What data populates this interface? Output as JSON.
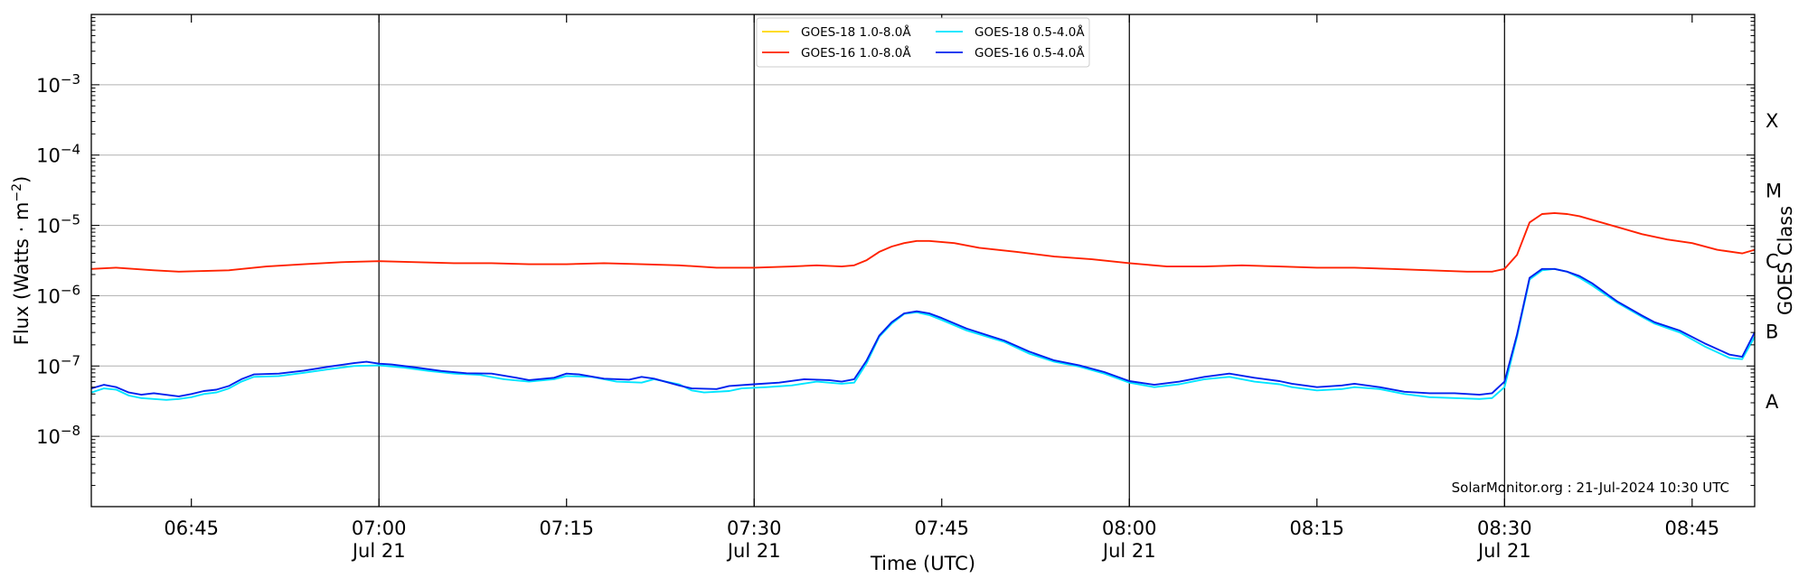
{
  "chart_data": {
    "type": "line",
    "title": "",
    "xlabel": "Time (UTC)",
    "ylabel": "Flux (Watts · m",
    "ylabel_exponent": "−2",
    "ylabel_close": ")",
    "y2label": "GOES Class",
    "yscale": "log",
    "xlim": [
      "06:37",
      "08:50"
    ],
    "ylim": [
      1e-09,
      0.01
    ],
    "grid": "horizontal",
    "legend_position": "top-center",
    "x_ticks": [
      {
        "time": "06:45",
        "label": "06:45",
        "sublabel": ""
      },
      {
        "time": "07:00",
        "label": "07:00",
        "sublabel": "Jul 21"
      },
      {
        "time": "07:15",
        "label": "07:15",
        "sublabel": ""
      },
      {
        "time": "07:30",
        "label": "07:30",
        "sublabel": "Jul 21"
      },
      {
        "time": "07:45",
        "label": "07:45",
        "sublabel": ""
      },
      {
        "time": "08:00",
        "label": "08:00",
        "sublabel": "Jul 21"
      },
      {
        "time": "08:15",
        "label": "08:15",
        "sublabel": ""
      },
      {
        "time": "08:30",
        "label": "08:30",
        "sublabel": "Jul 21"
      },
      {
        "time": "08:45",
        "label": "08:45",
        "sublabel": ""
      }
    ],
    "day_lines": [
      "07:00",
      "07:30",
      "08:00",
      "08:30"
    ],
    "y_ticks": [
      {
        "exp": -8,
        "label": "10",
        "sup": "−8"
      },
      {
        "exp": -7,
        "label": "10",
        "sup": "−7"
      },
      {
        "exp": -6,
        "label": "10",
        "sup": "−6"
      },
      {
        "exp": -5,
        "label": "10",
        "sup": "−5"
      },
      {
        "exp": -4,
        "label": "10",
        "sup": "−4"
      },
      {
        "exp": -3,
        "label": "10",
        "sup": "−3"
      }
    ],
    "gridlines_exp": [
      -8,
      -7,
      -6,
      -5,
      -4,
      -3
    ],
    "goes_classes": [
      {
        "label": "A",
        "exp": -7.5
      },
      {
        "label": "B",
        "exp": -6.5
      },
      {
        "label": "C",
        "exp": -5.5
      },
      {
        "label": "M",
        "exp": -4.5
      },
      {
        "label": "X",
        "exp": -3.5
      }
    ],
    "credit": "SolarMonitor.org : 21-Jul-2024 10:30 UTC",
    "series": [
      {
        "name": "GOES-18 1.0-8.0Å",
        "color": "#ffd700",
        "points": []
      },
      {
        "name": "GOES-16 1.0-8.0Å",
        "color": "#ff2200",
        "points": [
          [
            "06:37",
            2.4e-06
          ],
          [
            "06:39",
            2.5e-06
          ],
          [
            "06:42",
            2.3e-06
          ],
          [
            "06:44",
            2.2e-06
          ],
          [
            "06:48",
            2.3e-06
          ],
          [
            "06:51",
            2.6e-06
          ],
          [
            "06:54",
            2.8e-06
          ],
          [
            "06:57",
            3e-06
          ],
          [
            "07:00",
            3.1e-06
          ],
          [
            "07:03",
            3e-06
          ],
          [
            "07:06",
            2.9e-06
          ],
          [
            "07:09",
            2.9e-06
          ],
          [
            "07:12",
            2.8e-06
          ],
          [
            "07:15",
            2.8e-06
          ],
          [
            "07:18",
            2.9e-06
          ],
          [
            "07:21",
            2.8e-06
          ],
          [
            "07:24",
            2.7e-06
          ],
          [
            "07:27",
            2.5e-06
          ],
          [
            "07:30",
            2.5e-06
          ],
          [
            "07:33",
            2.6e-06
          ],
          [
            "07:35",
            2.7e-06
          ],
          [
            "07:37",
            2.6e-06
          ],
          [
            "07:38",
            2.7e-06
          ],
          [
            "07:39",
            3.2e-06
          ],
          [
            "07:40",
            4.2e-06
          ],
          [
            "07:41",
            5e-06
          ],
          [
            "07:42",
            5.6e-06
          ],
          [
            "07:43",
            6e-06
          ],
          [
            "07:44",
            6e-06
          ],
          [
            "07:46",
            5.6e-06
          ],
          [
            "07:48",
            4.8e-06
          ],
          [
            "07:51",
            4.2e-06
          ],
          [
            "07:54",
            3.6e-06
          ],
          [
            "07:57",
            3.3e-06
          ],
          [
            "08:00",
            2.9e-06
          ],
          [
            "08:03",
            2.6e-06
          ],
          [
            "08:06",
            2.6e-06
          ],
          [
            "08:09",
            2.7e-06
          ],
          [
            "08:12",
            2.6e-06
          ],
          [
            "08:15",
            2.5e-06
          ],
          [
            "08:18",
            2.5e-06
          ],
          [
            "08:21",
            2.4e-06
          ],
          [
            "08:24",
            2.3e-06
          ],
          [
            "08:27",
            2.2e-06
          ],
          [
            "08:29",
            2.2e-06
          ],
          [
            "08:30",
            2.4e-06
          ],
          [
            "08:31",
            3.8e-06
          ],
          [
            "08:32",
            1.1e-05
          ],
          [
            "08:33",
            1.45e-05
          ],
          [
            "08:34",
            1.5e-05
          ],
          [
            "08:35",
            1.45e-05
          ],
          [
            "08:36",
            1.35e-05
          ],
          [
            "08:37",
            1.2e-05
          ],
          [
            "08:39",
            9.5e-06
          ],
          [
            "08:41",
            7.5e-06
          ],
          [
            "08:43",
            6.3e-06
          ],
          [
            "08:45",
            5.6e-06
          ],
          [
            "08:47",
            4.5e-06
          ],
          [
            "08:49",
            4e-06
          ],
          [
            "08:50",
            4.5e-06
          ]
        ]
      },
      {
        "name": "GOES-18 0.5-4.0Å",
        "color": "#00e5ff",
        "points": [
          [
            "06:37",
            4.2e-08
          ],
          [
            "06:38",
            4.8e-08
          ],
          [
            "06:39",
            4.6e-08
          ],
          [
            "06:40",
            3.8e-08
          ],
          [
            "06:41",
            3.5e-08
          ],
          [
            "06:43",
            3.3e-08
          ],
          [
            "06:44",
            3.4e-08
          ],
          [
            "06:45",
            3.6e-08
          ],
          [
            "06:46",
            4e-08
          ],
          [
            "06:47",
            4.2e-08
          ],
          [
            "06:48",
            4.8e-08
          ],
          [
            "06:49",
            6e-08
          ],
          [
            "06:50",
            7e-08
          ],
          [
            "06:52",
            7.2e-08
          ],
          [
            "06:54",
            8e-08
          ],
          [
            "06:56",
            9e-08
          ],
          [
            "06:58",
            1e-07
          ],
          [
            "07:00",
            1.02e-07
          ],
          [
            "07:02",
            9.5e-08
          ],
          [
            "07:04",
            8.5e-08
          ],
          [
            "07:06",
            7.8e-08
          ],
          [
            "07:08",
            7.5e-08
          ],
          [
            "07:10",
            6.5e-08
          ],
          [
            "07:12",
            6e-08
          ],
          [
            "07:14",
            6.5e-08
          ],
          [
            "07:15",
            7.2e-08
          ],
          [
            "07:17",
            7e-08
          ],
          [
            "07:19",
            6e-08
          ],
          [
            "07:21",
            5.8e-08
          ],
          [
            "07:22",
            6.5e-08
          ],
          [
            "07:24",
            5.5e-08
          ],
          [
            "07:25",
            4.5e-08
          ],
          [
            "07:26",
            4.2e-08
          ],
          [
            "07:28",
            4.4e-08
          ],
          [
            "07:29",
            4.8e-08
          ],
          [
            "07:31",
            5e-08
          ],
          [
            "07:33",
            5.3e-08
          ],
          [
            "07:35",
            6e-08
          ],
          [
            "07:37",
            5.6e-08
          ],
          [
            "07:38",
            5.8e-08
          ],
          [
            "07:39",
            1.1e-07
          ],
          [
            "07:40",
            2.6e-07
          ],
          [
            "07:41",
            4e-07
          ],
          [
            "07:42",
            5.5e-07
          ],
          [
            "07:43",
            5.8e-07
          ],
          [
            "07:44",
            5.3e-07
          ],
          [
            "07:45",
            4.5e-07
          ],
          [
            "07:47",
            3.2e-07
          ],
          [
            "07:50",
            2.2e-07
          ],
          [
            "07:52",
            1.5e-07
          ],
          [
            "07:54",
            1.15e-07
          ],
          [
            "07:56",
            9.8e-08
          ],
          [
            "07:58",
            7.8e-08
          ],
          [
            "08:00",
            5.8e-08
          ],
          [
            "08:02",
            5e-08
          ],
          [
            "08:04",
            5.5e-08
          ],
          [
            "08:06",
            6.5e-08
          ],
          [
            "08:08",
            7e-08
          ],
          [
            "08:10",
            6e-08
          ],
          [
            "08:12",
            5.5e-08
          ],
          [
            "08:13",
            5e-08
          ],
          [
            "08:15",
            4.5e-08
          ],
          [
            "08:17",
            4.7e-08
          ],
          [
            "08:18",
            5e-08
          ],
          [
            "08:20",
            4.7e-08
          ],
          [
            "08:22",
            4e-08
          ],
          [
            "08:24",
            3.6e-08
          ],
          [
            "08:26",
            3.5e-08
          ],
          [
            "08:28",
            3.4e-08
          ],
          [
            "08:29",
            3.5e-08
          ],
          [
            "08:30",
            5e-08
          ],
          [
            "08:31",
            2.6e-07
          ],
          [
            "08:32",
            1.7e-06
          ],
          [
            "08:33",
            2.3e-06
          ],
          [
            "08:34",
            2.4e-06
          ],
          [
            "08:35",
            2.2e-06
          ],
          [
            "08:36",
            1.8e-06
          ],
          [
            "08:37",
            1.4e-06
          ],
          [
            "08:39",
            8e-07
          ],
          [
            "08:41",
            5e-07
          ],
          [
            "08:42",
            4e-07
          ],
          [
            "08:44",
            3e-07
          ],
          [
            "08:46",
            1.9e-07
          ],
          [
            "08:48",
            1.3e-07
          ],
          [
            "08:49",
            1.25e-07
          ],
          [
            "08:50",
            2.6e-07
          ]
        ]
      },
      {
        "name": "GOES-16 0.5-4.0Å",
        "color": "#0022ee",
        "points": [
          [
            "06:37",
            4.8e-08
          ],
          [
            "06:38",
            5.4e-08
          ],
          [
            "06:39",
            5e-08
          ],
          [
            "06:40",
            4.2e-08
          ],
          [
            "06:41",
            3.9e-08
          ],
          [
            "06:42",
            4.1e-08
          ],
          [
            "06:44",
            3.7e-08
          ],
          [
            "06:45",
            4e-08
          ],
          [
            "06:46",
            4.4e-08
          ],
          [
            "06:47",
            4.6e-08
          ],
          [
            "06:48",
            5.2e-08
          ],
          [
            "06:49",
            6.5e-08
          ],
          [
            "06:50",
            7.6e-08
          ],
          [
            "06:52",
            7.8e-08
          ],
          [
            "06:54",
            8.6e-08
          ],
          [
            "06:56",
            9.8e-08
          ],
          [
            "06:58",
            1.1e-07
          ],
          [
            "06:59",
            1.15e-07
          ],
          [
            "07:00",
            1.08e-07
          ],
          [
            "07:01",
            1.05e-07
          ],
          [
            "07:03",
            9.5e-08
          ],
          [
            "07:05",
            8.5e-08
          ],
          [
            "07:07",
            7.9e-08
          ],
          [
            "07:09",
            7.8e-08
          ],
          [
            "07:11",
            6.8e-08
          ],
          [
            "07:12",
            6.3e-08
          ],
          [
            "07:14",
            6.8e-08
          ],
          [
            "07:15",
            7.8e-08
          ],
          [
            "07:16",
            7.6e-08
          ],
          [
            "07:18",
            6.6e-08
          ],
          [
            "07:20",
            6.4e-08
          ],
          [
            "07:21",
            7e-08
          ],
          [
            "07:22",
            6.6e-08
          ],
          [
            "07:24",
            5.3e-08
          ],
          [
            "07:25",
            4.8e-08
          ],
          [
            "07:27",
            4.7e-08
          ],
          [
            "07:28",
            5.2e-08
          ],
          [
            "07:30",
            5.5e-08
          ],
          [
            "07:32",
            5.8e-08
          ],
          [
            "07:34",
            6.5e-08
          ],
          [
            "07:36",
            6.3e-08
          ],
          [
            "07:37",
            6e-08
          ],
          [
            "07:38",
            6.5e-08
          ],
          [
            "07:39",
            1.2e-07
          ],
          [
            "07:40",
            2.7e-07
          ],
          [
            "07:41",
            4.2e-07
          ],
          [
            "07:42",
            5.6e-07
          ],
          [
            "07:43",
            6e-07
          ],
          [
            "07:44",
            5.6e-07
          ],
          [
            "07:45",
            4.8e-07
          ],
          [
            "07:47",
            3.4e-07
          ],
          [
            "07:50",
            2.3e-07
          ],
          [
            "07:52",
            1.6e-07
          ],
          [
            "07:54",
            1.2e-07
          ],
          [
            "07:56",
            1.02e-07
          ],
          [
            "07:58",
            8.2e-08
          ],
          [
            "08:00",
            6.1e-08
          ],
          [
            "08:02",
            5.4e-08
          ],
          [
            "08:04",
            6e-08
          ],
          [
            "08:06",
            7e-08
          ],
          [
            "08:08",
            7.8e-08
          ],
          [
            "08:10",
            6.8e-08
          ],
          [
            "08:12",
            6.1e-08
          ],
          [
            "08:13",
            5.6e-08
          ],
          [
            "08:15",
            5e-08
          ],
          [
            "08:17",
            5.3e-08
          ],
          [
            "08:18",
            5.6e-08
          ],
          [
            "08:20",
            5e-08
          ],
          [
            "08:22",
            4.3e-08
          ],
          [
            "08:24",
            4.1e-08
          ],
          [
            "08:26",
            4.1e-08
          ],
          [
            "08:28",
            3.9e-08
          ],
          [
            "08:29",
            4.1e-08
          ],
          [
            "08:30",
            6e-08
          ],
          [
            "08:31",
            2.8e-07
          ],
          [
            "08:32",
            1.8e-06
          ],
          [
            "08:33",
            2.4e-06
          ],
          [
            "08:34",
            2.4e-06
          ],
          [
            "08:35",
            2.2e-06
          ],
          [
            "08:36",
            1.9e-06
          ],
          [
            "08:37",
            1.5e-06
          ],
          [
            "08:39",
            8.3e-07
          ],
          [
            "08:41",
            5.2e-07
          ],
          [
            "08:42",
            4.2e-07
          ],
          [
            "08:44",
            3.2e-07
          ],
          [
            "08:46",
            2.1e-07
          ],
          [
            "08:48",
            1.45e-07
          ],
          [
            "08:49",
            1.35e-07
          ],
          [
            "08:50",
            3e-07
          ]
        ]
      }
    ]
  }
}
